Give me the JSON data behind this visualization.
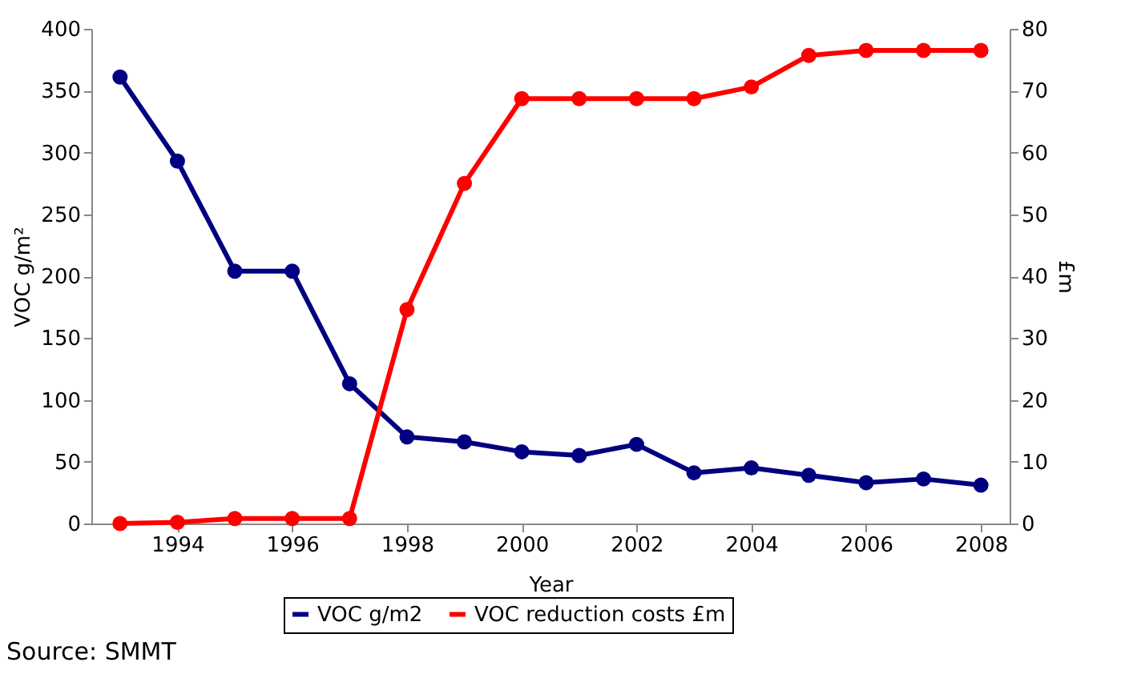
{
  "chart_data": {
    "type": "line",
    "xlabel": "Year",
    "ylabel": "VOC g/m²",
    "y2label": "£m",
    "x": [
      1993,
      1994,
      1995,
      1996,
      1997,
      1998,
      1999,
      2000,
      2001,
      2002,
      2003,
      2004,
      2005,
      2006,
      2007,
      2008
    ],
    "series": [
      {
        "name": "VOC g/m2",
        "color": "#000080",
        "values": [
          361,
          293,
          204,
          204,
          113,
          70,
          66,
          58,
          55,
          64,
          41,
          45,
          39,
          33,
          36,
          31
        ]
      },
      {
        "name": "VOC reduction costs £m",
        "color": "#ff0000",
        "axis": "y2",
        "values": [
          0,
          0.2,
          0.8,
          0.8,
          0.8,
          34.6,
          55,
          68.7,
          68.7,
          68.7,
          68.7,
          70.6,
          75.7,
          76.5,
          76.5,
          76.5
        ]
      }
    ],
    "xlim": [
      1992.5,
      2008.5
    ],
    "xticks": [
      1994,
      1996,
      1998,
      2000,
      2002,
      2004,
      2006,
      2008
    ],
    "ylim": [
      0,
      400
    ],
    "yticks": [
      0,
      50,
      100,
      150,
      200,
      250,
      300,
      350,
      400
    ],
    "y2lim": [
      0,
      80
    ],
    "y2ticks": [
      0,
      10,
      20,
      30,
      40,
      50,
      60,
      70,
      80
    ],
    "grid": false,
    "legend": "bottom",
    "marker": "circle",
    "line_style": "solid",
    "annotations": [
      "Source: SMMT"
    ]
  }
}
